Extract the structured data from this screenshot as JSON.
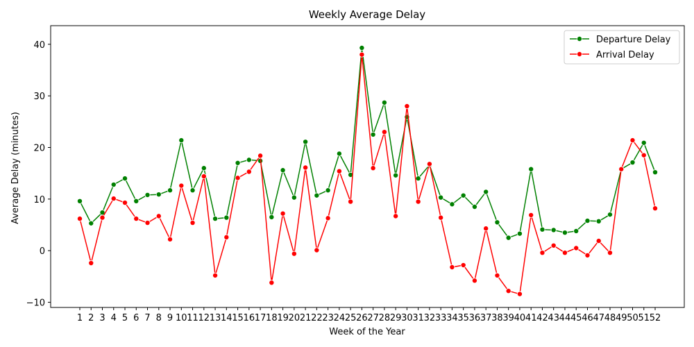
{
  "chart_data": {
    "type": "line",
    "title": "Weekly Average Delay",
    "xlabel": "Week of the Year",
    "ylabel": "Average Delay (minutes)",
    "ylim": [
      -11,
      43.6
    ],
    "yticks": [
      -10,
      0,
      10,
      20,
      30,
      40
    ],
    "x": [
      1,
      2,
      3,
      4,
      5,
      6,
      7,
      8,
      9,
      10,
      11,
      12,
      13,
      14,
      15,
      16,
      17,
      18,
      19,
      20,
      21,
      22,
      23,
      24,
      25,
      26,
      27,
      28,
      29,
      30,
      31,
      32,
      33,
      34,
      35,
      36,
      37,
      38,
      39,
      40,
      41,
      42,
      43,
      44,
      45,
      46,
      47,
      48,
      49,
      50,
      51,
      52
    ],
    "legend_position": "top-right",
    "grid": false,
    "series": [
      {
        "name": "Departure Delay",
        "color": "#008000",
        "values": [
          9.6,
          5.3,
          7.4,
          12.8,
          14.0,
          9.6,
          10.8,
          10.9,
          11.7,
          21.4,
          11.7,
          16.0,
          6.2,
          6.4,
          17.0,
          17.6,
          17.4,
          6.5,
          15.6,
          10.3,
          21.1,
          10.7,
          11.7,
          18.8,
          14.7,
          39.3,
          22.5,
          28.7,
          14.6,
          25.9,
          14.0,
          16.6,
          10.3,
          9.0,
          10.7,
          8.5,
          11.4,
          5.5,
          2.5,
          3.3,
          15.8,
          4.1,
          4.0,
          3.5,
          3.8,
          5.8,
          5.7,
          7.0,
          15.8,
          17.1,
          20.9,
          15.2
        ]
      },
      {
        "name": "Arrival Delay",
        "color": "#ff0000",
        "values": [
          6.2,
          -2.4,
          6.4,
          10.1,
          9.3,
          6.2,
          5.4,
          6.7,
          2.2,
          12.6,
          5.4,
          14.4,
          -4.8,
          2.6,
          14.1,
          15.3,
          18.4,
          -6.2,
          7.2,
          -0.6,
          16.1,
          0.1,
          6.3,
          15.4,
          9.5,
          38.0,
          16.0,
          23.0,
          6.7,
          28.0,
          9.5,
          16.8,
          6.4,
          -3.2,
          -2.8,
          -5.8,
          4.3,
          -4.8,
          -7.8,
          -8.4,
          6.9,
          -0.4,
          1.0,
          -0.4,
          0.5,
          -0.9,
          1.9,
          -0.4,
          15.8,
          21.4,
          18.5,
          8.2
        ]
      }
    ]
  }
}
